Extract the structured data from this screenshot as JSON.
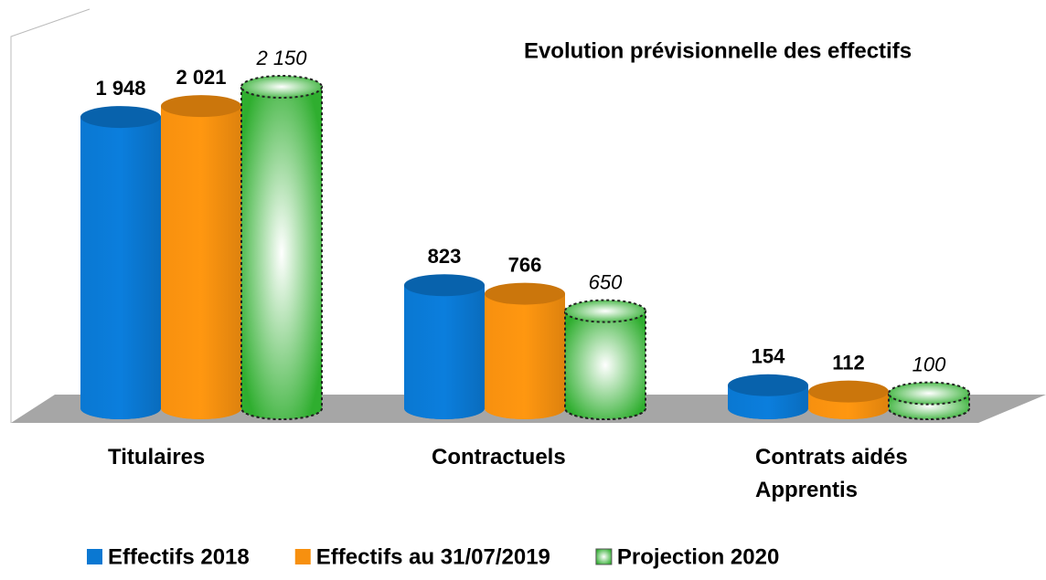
{
  "chart_data": {
    "type": "bar3d",
    "title": "Evolution prévisionnelle des effectifs",
    "categories": [
      "Titulaires",
      "Contractuels",
      "Contrats aidés\nApprentis"
    ],
    "series": [
      {
        "name": "Effectifs 2018",
        "color": "#0a78d2",
        "values": [
          1948,
          823,
          154
        ],
        "value_labels": [
          "1 948",
          "823",
          "154"
        ]
      },
      {
        "name": "Effectifs au 31/07/2019",
        "color": "#f7900f",
        "values": [
          2021,
          766,
          112
        ],
        "value_labels": [
          "2 021",
          "766",
          "112"
        ]
      },
      {
        "name": "Projection 2020",
        "color": "#2fae2f",
        "dashed": true,
        "values": [
          2150,
          650,
          100
        ],
        "value_labels": [
          "2 150",
          "650",
          "100"
        ]
      }
    ]
  }
}
